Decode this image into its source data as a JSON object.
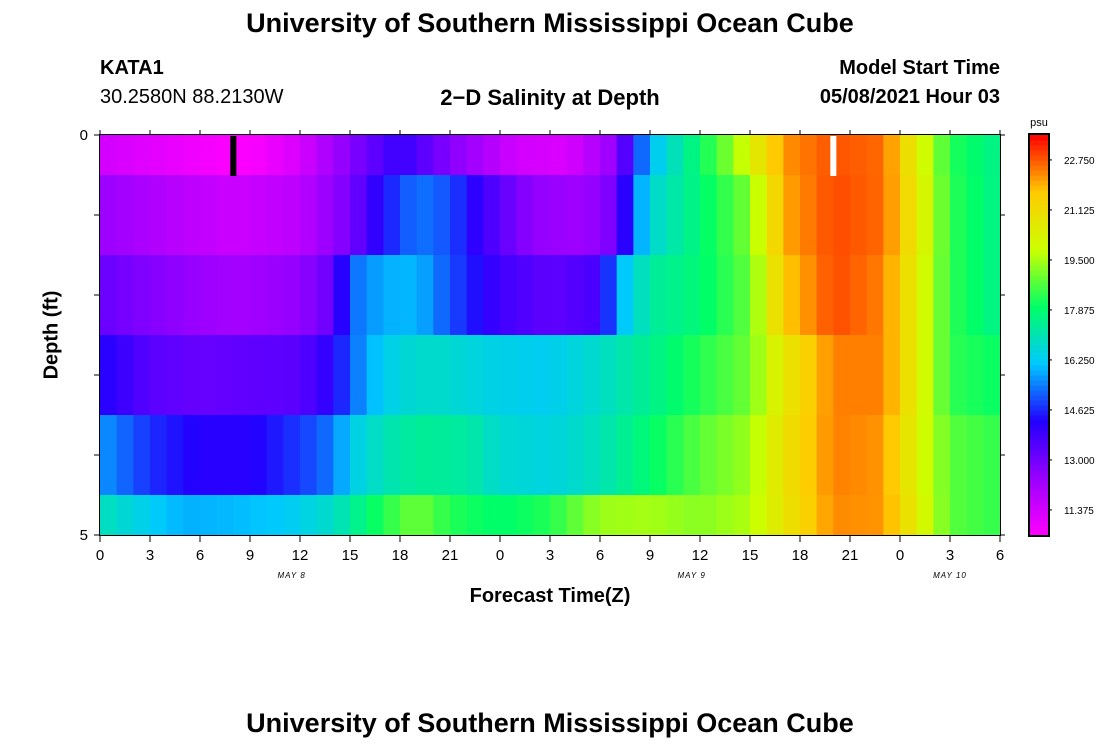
{
  "header": {
    "title_top": "University of Southern Mississippi Ocean Cube",
    "station_id": "KATA1",
    "station_coords": "30.2580N  88.2130W",
    "plot_title": "2−D Salinity at Depth",
    "model_start_label": "Model Start Time",
    "model_start_value": "05/08/2021 Hour 03",
    "title_bottom": "University of Southern Mississippi Ocean Cube"
  },
  "chart_data": {
    "type": "heatmap",
    "title": "2−D Salinity at Depth",
    "xlabel": "Forecast Time(Z)",
    "ylabel": "Depth (ft)",
    "x_tick_labels": [
      "0",
      "3",
      "6",
      "9",
      "12",
      "15",
      "18",
      "21",
      "0",
      "3",
      "6",
      "9",
      "12",
      "15",
      "18",
      "21",
      "0",
      "3",
      "6"
    ],
    "date_labels": [
      {
        "label": "MAY 8",
        "hour_index": 11.5
      },
      {
        "label": "MAY 9",
        "hour_index": 35.5
      },
      {
        "label": "MAY 10",
        "hour_index": 51
      }
    ],
    "x_range_hours": [
      0,
      54
    ],
    "y_tick_labels": [
      "0",
      "5"
    ],
    "ylim": [
      0,
      5
    ],
    "colorbar": {
      "unit": "psu",
      "min": 10.56,
      "max": 23.56,
      "tick_labels": [
        "22.750",
        "21.125",
        "19.500",
        "17.875",
        "16.250",
        "14.625",
        "13.000",
        "11.375"
      ],
      "tick_values": [
        22.75,
        21.125,
        19.5,
        17.875,
        16.25,
        14.625,
        13.0,
        11.375
      ],
      "colors_low_to_high": [
        "#ff00ff",
        "#9900ff",
        "#2200ff",
        "#00c8ff",
        "#00ff66",
        "#ccff00",
        "#ffcc00",
        "#ff0000"
      ]
    },
    "markers": [
      {
        "type": "black",
        "hour": 8
      },
      {
        "type": "white",
        "hour": 44
      }
    ],
    "depth_layers": [
      {
        "depth_range": [
          0.0,
          0.5
        ],
        "knots": [
          [
            0,
            11.4
          ],
          [
            4,
            11.0
          ],
          [
            7,
            10.7
          ],
          [
            9,
            10.6
          ],
          [
            12,
            11.3
          ],
          [
            15,
            12.7
          ],
          [
            18,
            14.0
          ],
          [
            21,
            12.7
          ],
          [
            25,
            11.4
          ],
          [
            28,
            11.2
          ],
          [
            31,
            12.5
          ],
          [
            32,
            14.5
          ],
          [
            33,
            16.0
          ],
          [
            35,
            17.3
          ],
          [
            38,
            19.3
          ],
          [
            41,
            22.2
          ],
          [
            44,
            22.8
          ],
          [
            47,
            22.6
          ],
          [
            49,
            20.5
          ],
          [
            51,
            18.3
          ],
          [
            54,
            17.5
          ]
        ]
      },
      {
        "depth_range": [
          0.5,
          1.5
        ],
        "knots": [
          [
            0,
            12.4
          ],
          [
            4,
            11.9
          ],
          [
            8,
            11.5
          ],
          [
            12,
            11.8
          ],
          [
            15,
            12.9
          ],
          [
            17,
            14.4
          ],
          [
            19,
            15.4
          ],
          [
            21,
            15.0
          ],
          [
            23,
            13.8
          ],
          [
            26,
            12.5
          ],
          [
            29,
            12.3
          ],
          [
            31,
            13.0
          ],
          [
            32,
            15.3
          ],
          [
            33,
            16.6
          ],
          [
            36,
            17.8
          ],
          [
            39,
            19.1
          ],
          [
            41,
            22.0
          ],
          [
            44,
            22.9
          ],
          [
            47,
            22.6
          ],
          [
            49,
            20.7
          ],
          [
            51,
            18.4
          ],
          [
            54,
            17.5
          ]
        ]
      },
      {
        "depth_range": [
          1.5,
          2.5
        ],
        "knots": [
          [
            0,
            13.2
          ],
          [
            4,
            12.6
          ],
          [
            8,
            12.2
          ],
          [
            12,
            12.5
          ],
          [
            14,
            13.2
          ],
          [
            15,
            15.2
          ],
          [
            17,
            15.9
          ],
          [
            19,
            16.0
          ],
          [
            21,
            15.0
          ],
          [
            24,
            13.8
          ],
          [
            27,
            13.3
          ],
          [
            30,
            13.7
          ],
          [
            31,
            15.8
          ],
          [
            33,
            17.3
          ],
          [
            36,
            17.8
          ],
          [
            39,
            18.9
          ],
          [
            41,
            21.6
          ],
          [
            44,
            22.9
          ],
          [
            47,
            22.4
          ],
          [
            49,
            20.5
          ],
          [
            51,
            18.4
          ],
          [
            54,
            17.5
          ]
        ]
      },
      {
        "depth_range": [
          2.5,
          3.5
        ],
        "knots": [
          [
            0,
            14.3
          ],
          [
            3,
            13.4
          ],
          [
            6,
            13.2
          ],
          [
            9,
            13.3
          ],
          [
            12,
            13.4
          ],
          [
            14,
            14.2
          ],
          [
            16,
            15.9
          ],
          [
            18,
            16.6
          ],
          [
            20,
            16.8
          ],
          [
            22,
            16.6
          ],
          [
            24,
            16.4
          ],
          [
            27,
            16.3
          ],
          [
            30,
            16.8
          ],
          [
            33,
            17.5
          ],
          [
            36,
            18.3
          ],
          [
            39,
            19.0
          ],
          [
            41,
            20.7
          ],
          [
            44,
            22.4
          ],
          [
            47,
            22.4
          ],
          [
            49,
            20.5
          ],
          [
            51,
            18.4
          ],
          [
            54,
            18.0
          ]
        ]
      },
      {
        "depth_range": [
          3.5,
          4.5
        ],
        "knots": [
          [
            0,
            15.7
          ],
          [
            3,
            14.7
          ],
          [
            6,
            14.2
          ],
          [
            9,
            14.2
          ],
          [
            12,
            14.8
          ],
          [
            14,
            15.4
          ],
          [
            15,
            16.3
          ],
          [
            17,
            17.0
          ],
          [
            19,
            17.4
          ],
          [
            22,
            17.3
          ],
          [
            24,
            16.7
          ],
          [
            27,
            16.5
          ],
          [
            30,
            17.0
          ],
          [
            33,
            17.9
          ],
          [
            36,
            18.8
          ],
          [
            39,
            19.4
          ],
          [
            41,
            20.9
          ],
          [
            44,
            22.4
          ],
          [
            47,
            22.2
          ],
          [
            49,
            20.3
          ],
          [
            51,
            18.8
          ],
          [
            54,
            18.4
          ]
        ]
      },
      {
        "depth_range": [
          4.5,
          5.0
        ],
        "knots": [
          [
            0,
            17.0
          ],
          [
            3,
            16.3
          ],
          [
            5,
            15.9
          ],
          [
            8,
            16.0
          ],
          [
            11,
            16.2
          ],
          [
            14,
            16.8
          ],
          [
            17,
            18.3
          ],
          [
            19,
            19.0
          ],
          [
            21,
            18.3
          ],
          [
            24,
            17.9
          ],
          [
            27,
            18.3
          ],
          [
            30,
            19.4
          ],
          [
            33,
            19.5
          ],
          [
            36,
            19.2
          ],
          [
            39,
            19.6
          ],
          [
            41,
            20.8
          ],
          [
            44,
            22.3
          ],
          [
            47,
            22.2
          ],
          [
            49,
            20.5
          ],
          [
            51,
            18.8
          ],
          [
            54,
            18.4
          ]
        ]
      }
    ]
  }
}
